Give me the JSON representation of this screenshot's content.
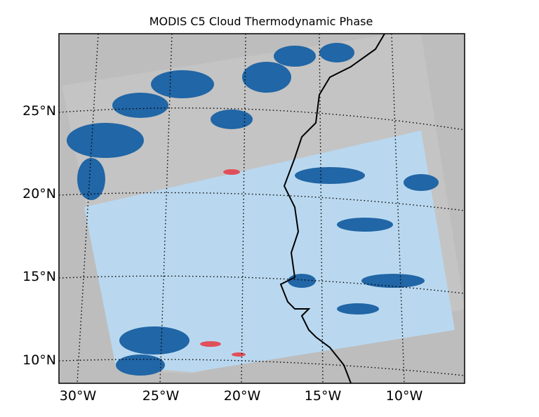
{
  "title": "MODIS C5 Cloud Thermodynamic Phase",
  "lat_labels": [
    "25°N",
    "20°N",
    "15°N",
    "10°N"
  ],
  "lon_labels": [
    "30°W",
    "25°W",
    "20°W",
    "15°W",
    "10°W"
  ]
}
